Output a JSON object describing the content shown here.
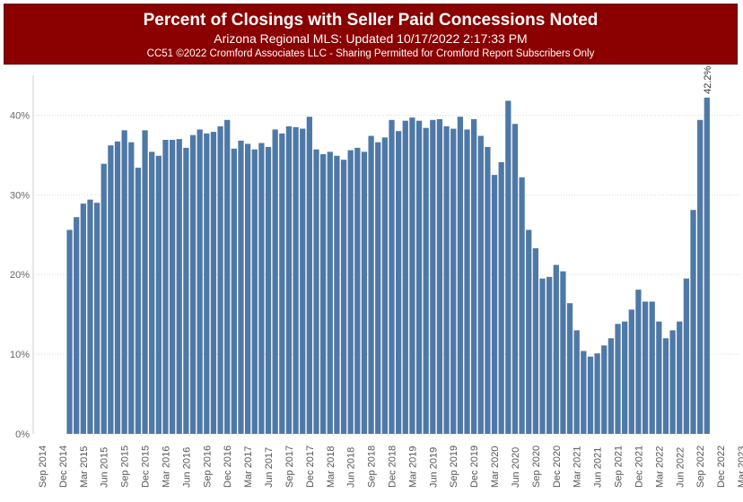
{
  "header": {
    "title": "Percent of Closings with Seller Paid Concessions Noted",
    "subtitle": "Arizona Regional MLS: Updated 10/17/2022 2:17:33 PM",
    "credit": "CC51 ©2022 Cromford Associates LLC - Sharing Permitted for Cromford Report Subscribers Only"
  },
  "colors": {
    "bar": "#4e79a7",
    "banner": "#8b0000",
    "grid": "#d9d9d9"
  },
  "chart_data": {
    "type": "bar",
    "ylim": [
      0,
      45
    ],
    "yticks": [
      0,
      10,
      20,
      30,
      40
    ],
    "ytick_labels": [
      "0%",
      "10%",
      "20%",
      "30%",
      "40%"
    ],
    "x_tick_labels": [
      "Sep 2014",
      "Dec 2014",
      "Mar 2015",
      "Jun 2015",
      "Sep 2015",
      "Dec 2015",
      "Mar 2016",
      "Jun 2016",
      "Sep 2016",
      "Dec 2016",
      "Mar 2017",
      "Jun 2017",
      "Sep 2017",
      "Dec 2017",
      "Mar 2018",
      "Jun 2018",
      "Sep 2018",
      "Dec 2018",
      "Mar 2019",
      "Jun 2019",
      "Sep 2019",
      "Dec 2019",
      "Mar 2020",
      "Jun 2020",
      "Sep 2020",
      "Dec 2020",
      "Mar 2021",
      "Jun 2021",
      "Sep 2021",
      "Dec 2021",
      "Mar 2022",
      "Jun 2022",
      "Sep 2022",
      "Dec 2022",
      "Mar 2023"
    ],
    "x_start": "Sep 2014",
    "x_end": "Mar 2023",
    "bar_start": "Jan 2015",
    "values": [
      25.6,
      27.2,
      28.9,
      29.4,
      29.0,
      33.9,
      36.2,
      36.7,
      38.1,
      36.6,
      33.4,
      38.1,
      35.4,
      34.9,
      36.9,
      36.9,
      37.0,
      35.9,
      37.5,
      38.2,
      37.7,
      37.9,
      38.6,
      39.4,
      35.8,
      36.8,
      36.4,
      35.7,
      36.5,
      36.0,
      38.2,
      37.7,
      38.6,
      38.5,
      38.3,
      39.8,
      35.7,
      35.1,
      35.4,
      34.9,
      34.4,
      35.6,
      35.9,
      35.4,
      37.4,
      36.6,
      37.2,
      39.4,
      38.0,
      39.3,
      39.7,
      39.3,
      38.4,
      39.4,
      39.5,
      38.6,
      38.3,
      39.8,
      38.2,
      39.5,
      37.4,
      36.0,
      32.5,
      34.1,
      41.8,
      38.9,
      32.2,
      25.6,
      23.3,
      19.5,
      19.7,
      21.2,
      20.4,
      16.4,
      13.0,
      10.4,
      9.7,
      10.1,
      11.1,
      12.0,
      13.8,
      14.1,
      15.6,
      18.1,
      16.6,
      16.6,
      14.1,
      12.0,
      13.0,
      14.1,
      19.5,
      28.1,
      39.4,
      42.2
    ],
    "data_labels": [
      {
        "period": "Oct 2022",
        "text": "42.2%"
      }
    ]
  }
}
